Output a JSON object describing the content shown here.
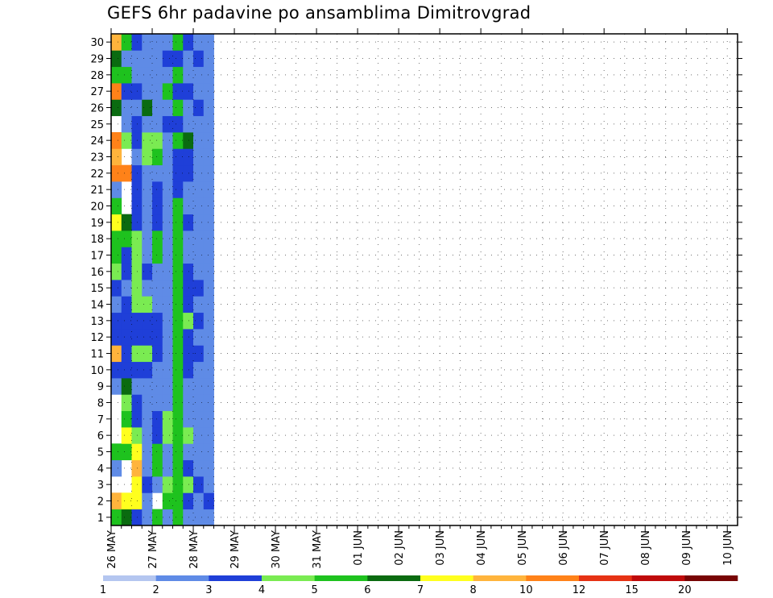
{
  "chart_data": {
    "type": "heatmap",
    "title": "GEFS 6hr padavine po ansamblima Dimitrovgrad",
    "xlabel": "",
    "ylabel": "",
    "x_ticks": [
      "26 MAY",
      "27 MAY",
      "28 MAY",
      "29 MAY",
      "30 MAY",
      "31 MAY",
      "01 JUN",
      "02 JUN",
      "03 JUN",
      "04 JUN",
      "05 JUN",
      "06 JUN",
      "07 JUN",
      "08 JUN",
      "09 JUN",
      "10 JUN"
    ],
    "y_ticks": [
      1,
      2,
      3,
      4,
      5,
      6,
      7,
      8,
      9,
      10,
      11,
      12,
      13,
      14,
      15,
      16,
      17,
      18,
      19,
      20,
      21,
      22,
      23,
      24,
      25,
      26,
      27,
      28,
      29,
      30
    ],
    "x_steps": 61,
    "steps_per_day": 4,
    "members": 30,
    "grid": true,
    "legend": {
      "position": "bottom",
      "labels": [
        "1",
        "2",
        "3",
        "4",
        "5",
        "6",
        "7",
        "8",
        "10",
        "12",
        "15",
        "20"
      ],
      "colors": [
        "#b4c6f0",
        "#5f8be6",
        "#1f3fd8",
        "#7aeb52",
        "#1ec21e",
        "#0a6b10",
        "#ffff1e",
        "#ffb43c",
        "#ff8219",
        "#e63214",
        "#bf0a0a",
        "#780505"
      ]
    },
    "cells": [
      [
        1,
        1,
        4
      ],
      [
        1,
        2,
        7
      ],
      [
        1,
        4,
        1
      ],
      [
        1,
        5,
        4
      ],
      [
        1,
        9,
        1
      ],
      [
        1,
        10,
        2
      ],
      [
        1,
        11,
        7
      ],
      [
        1,
        12,
        2
      ],
      [
        1,
        13,
        2
      ],
      [
        1,
        14,
        1
      ],
      [
        1,
        15,
        2
      ],
      [
        1,
        16,
        3
      ],
      [
        1,
        17,
        4
      ],
      [
        1,
        18,
        4
      ],
      [
        1,
        19,
        6
      ],
      [
        1,
        20,
        4
      ],
      [
        1,
        21,
        1
      ],
      [
        1,
        22,
        8
      ],
      [
        1,
        23,
        7
      ],
      [
        1,
        24,
        8
      ],
      [
        1,
        26,
        5
      ],
      [
        1,
        27,
        8
      ],
      [
        1,
        28,
        4
      ],
      [
        1,
        29,
        5
      ],
      [
        1,
        30,
        7
      ],
      [
        2,
        1,
        5
      ],
      [
        2,
        2,
        6
      ],
      [
        2,
        5,
        4
      ],
      [
        2,
        6,
        6
      ],
      [
        2,
        7,
        4
      ],
      [
        2,
        8,
        3
      ],
      [
        2,
        9,
        5
      ],
      [
        2,
        10,
        2
      ],
      [
        2,
        11,
        2
      ],
      [
        2,
        12,
        2
      ],
      [
        2,
        13,
        2
      ],
      [
        2,
        14,
        2
      ],
      [
        2,
        15,
        1
      ],
      [
        2,
        16,
        2
      ],
      [
        2,
        17,
        2
      ],
      [
        2,
        18,
        4
      ],
      [
        2,
        19,
        5
      ],
      [
        2,
        22,
        8
      ],
      [
        2,
        24,
        3
      ],
      [
        2,
        25,
        1
      ],
      [
        2,
        26,
        1
      ],
      [
        2,
        27,
        2
      ],
      [
        2,
        28,
        4
      ],
      [
        2,
        29,
        1
      ],
      [
        2,
        30,
        4
      ],
      [
        3,
        1,
        2
      ],
      [
        3,
        2,
        6
      ],
      [
        3,
        3,
        6
      ],
      [
        3,
        4,
        7
      ],
      [
        3,
        5,
        6
      ],
      [
        3,
        6,
        3
      ],
      [
        3,
        7,
        2
      ],
      [
        3,
        8,
        2
      ],
      [
        3,
        9,
        1
      ],
      [
        3,
        10,
        2
      ],
      [
        3,
        11,
        3
      ],
      [
        3,
        12,
        2
      ],
      [
        3,
        13,
        2
      ],
      [
        3,
        14,
        3
      ],
      [
        3,
        15,
        3
      ],
      [
        3,
        16,
        3
      ],
      [
        3,
        17,
        3
      ],
      [
        3,
        18,
        3
      ],
      [
        3,
        19,
        2
      ],
      [
        3,
        20,
        2
      ],
      [
        3,
        21,
        2
      ],
      [
        3,
        22,
        2
      ],
      [
        3,
        23,
        1
      ],
      [
        3,
        24,
        2
      ],
      [
        3,
        25,
        2
      ],
      [
        3,
        26,
        1
      ],
      [
        3,
        27,
        2
      ],
      [
        3,
        28,
        1
      ],
      [
        3,
        29,
        1
      ],
      [
        3,
        30,
        2
      ],
      [
        4,
        1,
        1
      ],
      [
        4,
        2,
        1
      ],
      [
        4,
        3,
        2
      ],
      [
        4,
        4,
        1
      ],
      [
        4,
        5,
        1
      ],
      [
        4,
        6,
        1
      ],
      [
        4,
        7,
        1
      ],
      [
        4,
        8,
        1
      ],
      [
        4,
        9,
        1
      ],
      [
        4,
        10,
        2
      ],
      [
        4,
        11,
        3
      ],
      [
        4,
        12,
        2
      ],
      [
        4,
        13,
        2
      ],
      [
        4,
        14,
        3
      ],
      [
        4,
        15,
        1
      ],
      [
        4,
        16,
        2
      ],
      [
        4,
        17,
        1
      ],
      [
        4,
        18,
        1
      ],
      [
        4,
        19,
        1
      ],
      [
        4,
        20,
        1
      ],
      [
        4,
        21,
        1
      ],
      [
        4,
        22,
        1
      ],
      [
        4,
        23,
        3
      ],
      [
        4,
        24,
        3
      ],
      [
        4,
        25,
        1
      ],
      [
        4,
        26,
        5
      ],
      [
        4,
        27,
        1
      ],
      [
        4,
        28,
        1
      ],
      [
        4,
        29,
        1
      ],
      [
        4,
        30,
        1
      ],
      [
        5,
        1,
        4
      ],
      [
        5,
        3,
        1
      ],
      [
        5,
        4,
        4
      ],
      [
        5,
        5,
        4
      ],
      [
        5,
        6,
        2
      ],
      [
        5,
        7,
        2
      ],
      [
        5,
        8,
        1
      ],
      [
        5,
        9,
        1
      ],
      [
        5,
        10,
        1
      ],
      [
        5,
        11,
        2
      ],
      [
        5,
        12,
        2
      ],
      [
        5,
        13,
        2
      ],
      [
        5,
        14,
        1
      ],
      [
        5,
        15,
        1
      ],
      [
        5,
        16,
        1
      ],
      [
        5,
        17,
        4
      ],
      [
        5,
        18,
        4
      ],
      [
        5,
        19,
        2
      ],
      [
        5,
        20,
        2
      ],
      [
        5,
        21,
        2
      ],
      [
        5,
        22,
        1
      ],
      [
        5,
        23,
        4
      ],
      [
        5,
        24,
        3
      ],
      [
        5,
        25,
        1
      ],
      [
        5,
        26,
        1
      ],
      [
        5,
        27,
        1
      ],
      [
        5,
        28,
        1
      ],
      [
        5,
        29,
        1
      ],
      [
        5,
        30,
        1
      ],
      [
        6,
        1,
        1
      ],
      [
        6,
        2,
        4
      ],
      [
        6,
        3,
        3
      ],
      [
        6,
        4,
        1
      ],
      [
        6,
        5,
        1
      ],
      [
        6,
        6,
        3
      ],
      [
        6,
        7,
        3
      ],
      [
        6,
        8,
        1
      ],
      [
        6,
        9,
        1
      ],
      [
        6,
        10,
        1
      ],
      [
        6,
        11,
        1
      ],
      [
        6,
        12,
        1
      ],
      [
        6,
        13,
        1
      ],
      [
        6,
        14,
        1
      ],
      [
        6,
        15,
        1
      ],
      [
        6,
        16,
        1
      ],
      [
        6,
        17,
        1
      ],
      [
        6,
        18,
        1
      ],
      [
        6,
        19,
        1
      ],
      [
        6,
        20,
        1
      ],
      [
        6,
        21,
        1
      ],
      [
        6,
        22,
        1
      ],
      [
        6,
        23,
        1
      ],
      [
        6,
        24,
        1
      ],
      [
        6,
        25,
        2
      ],
      [
        6,
        26,
        1
      ],
      [
        6,
        27,
        4
      ],
      [
        6,
        28,
        1
      ],
      [
        6,
        29,
        2
      ],
      [
        6,
        30,
        1
      ],
      [
        7,
        1,
        4
      ],
      [
        7,
        2,
        4
      ],
      [
        7,
        3,
        4
      ],
      [
        7,
        4,
        4
      ],
      [
        7,
        5,
        4
      ],
      [
        7,
        6,
        4
      ],
      [
        7,
        7,
        4
      ],
      [
        7,
        8,
        4
      ],
      [
        7,
        9,
        4
      ],
      [
        7,
        10,
        4
      ],
      [
        7,
        11,
        4
      ],
      [
        7,
        12,
        4
      ],
      [
        7,
        13,
        4
      ],
      [
        7,
        14,
        4
      ],
      [
        7,
        15,
        4
      ],
      [
        7,
        16,
        4
      ],
      [
        7,
        17,
        4
      ],
      [
        7,
        18,
        4
      ],
      [
        7,
        19,
        4
      ],
      [
        7,
        20,
        4
      ],
      [
        7,
        21,
        2
      ],
      [
        7,
        22,
        2
      ],
      [
        7,
        23,
        2
      ],
      [
        7,
        24,
        4
      ],
      [
        7,
        25,
        2
      ],
      [
        7,
        26,
        4
      ],
      [
        7,
        27,
        2
      ],
      [
        7,
        28,
        4
      ],
      [
        7,
        29,
        2
      ],
      [
        7,
        30,
        4
      ],
      [
        8,
        1,
        1
      ],
      [
        8,
        2,
        2
      ],
      [
        8,
        3,
        3
      ],
      [
        8,
        4,
        2
      ],
      [
        8,
        5,
        1
      ],
      [
        8,
        6,
        3
      ],
      [
        8,
        7,
        1
      ],
      [
        8,
        8,
        1
      ],
      [
        8,
        9,
        1
      ],
      [
        8,
        10,
        2
      ],
      [
        8,
        11,
        2
      ],
      [
        8,
        12,
        2
      ],
      [
        8,
        13,
        3
      ],
      [
        8,
        14,
        2
      ],
      [
        8,
        15,
        2
      ],
      [
        8,
        16,
        2
      ],
      [
        8,
        17,
        1
      ],
      [
        8,
        18,
        1
      ],
      [
        8,
        19,
        2
      ],
      [
        8,
        20,
        1
      ],
      [
        8,
        21,
        1
      ],
      [
        8,
        22,
        2
      ],
      [
        8,
        23,
        2
      ],
      [
        8,
        24,
        5
      ],
      [
        8,
        25,
        1
      ],
      [
        8,
        26,
        1
      ],
      [
        8,
        27,
        2
      ],
      [
        8,
        28,
        1
      ],
      [
        8,
        29,
        1
      ],
      [
        8,
        30,
        2
      ],
      [
        9,
        1,
        1
      ],
      [
        9,
        2,
        1
      ],
      [
        9,
        3,
        2
      ],
      [
        9,
        4,
        1
      ],
      [
        9,
        5,
        1
      ],
      [
        9,
        6,
        1
      ],
      [
        9,
        7,
        1
      ],
      [
        9,
        8,
        1
      ],
      [
        9,
        9,
        1
      ],
      [
        9,
        10,
        1
      ],
      [
        9,
        11,
        2
      ],
      [
        9,
        12,
        1
      ],
      [
        9,
        13,
        2
      ],
      [
        9,
        14,
        1
      ],
      [
        9,
        15,
        2
      ],
      [
        9,
        16,
        1
      ],
      [
        9,
        17,
        1
      ],
      [
        9,
        18,
        1
      ],
      [
        9,
        19,
        1
      ],
      [
        9,
        20,
        1
      ],
      [
        9,
        21,
        1
      ],
      [
        9,
        22,
        1
      ],
      [
        9,
        23,
        1
      ],
      [
        9,
        24,
        1
      ],
      [
        9,
        25,
        1
      ],
      [
        9,
        26,
        2
      ],
      [
        9,
        27,
        1
      ],
      [
        9,
        28,
        1
      ],
      [
        9,
        29,
        2
      ],
      [
        9,
        30,
        1
      ],
      [
        10,
        1,
        1
      ],
      [
        10,
        2,
        2
      ],
      [
        10,
        3,
        1
      ],
      [
        10,
        4,
        1
      ],
      [
        10,
        5,
        1
      ],
      [
        10,
        6,
        1
      ],
      [
        10,
        7,
        1
      ],
      [
        10,
        8,
        1
      ],
      [
        10,
        9,
        1
      ],
      [
        10,
        10,
        1
      ],
      [
        10,
        11,
        1
      ],
      [
        10,
        12,
        1
      ],
      [
        10,
        13,
        1
      ],
      [
        10,
        14,
        1
      ],
      [
        10,
        15,
        1
      ],
      [
        10,
        16,
        1
      ],
      [
        10,
        17,
        1
      ],
      [
        10,
        18,
        1
      ],
      [
        10,
        19,
        1
      ],
      [
        10,
        20,
        1
      ],
      [
        10,
        21,
        1
      ],
      [
        10,
        22,
        1
      ],
      [
        10,
        23,
        1
      ],
      [
        10,
        24,
        1
      ],
      [
        10,
        25,
        1
      ],
      [
        10,
        26,
        1
      ],
      [
        10,
        27,
        1
      ],
      [
        10,
        28,
        1
      ],
      [
        10,
        29,
        1
      ],
      [
        10,
        30,
        1
      ]
    ]
  }
}
